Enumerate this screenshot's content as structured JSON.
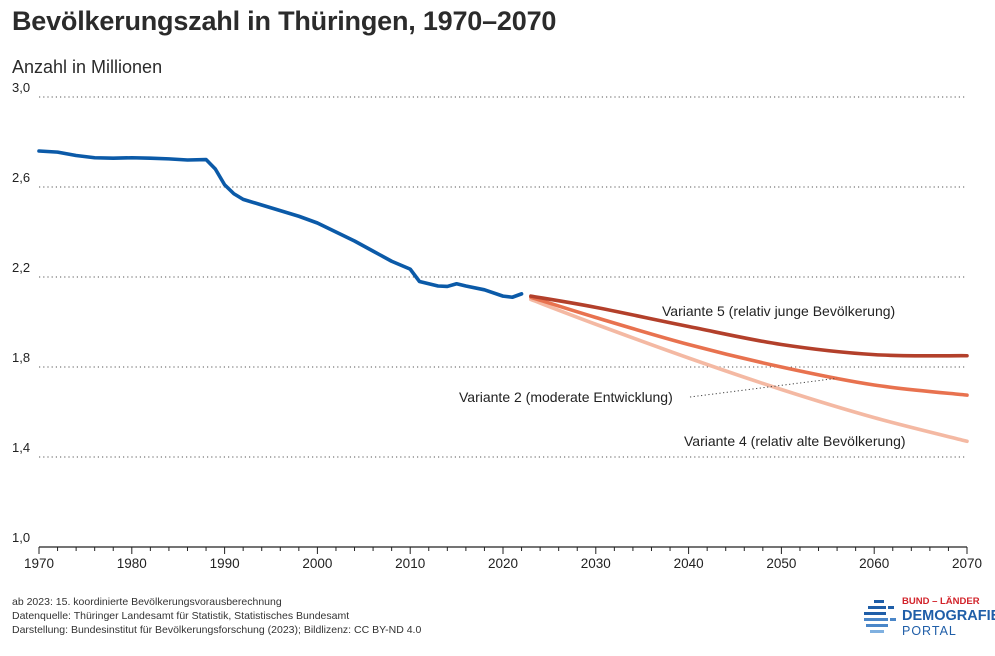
{
  "title": "Bevölkerungszahl in Thüringen, 1970–2070",
  "unit_label": "Anzahl in Millionen",
  "chart_data": {
    "type": "line",
    "title": "Bevölkerungszahl in Thüringen, 1970–2070",
    "ylabel": "Anzahl in Millionen",
    "xlim": [
      1970,
      2070
    ],
    "ylim": [
      1.0,
      3.0
    ],
    "x_ticks": [
      "1970",
      "1980",
      "1990",
      "2000",
      "2010",
      "2020",
      "2030",
      "2040",
      "2050",
      "2060",
      "2070"
    ],
    "y_ticks": [
      "1,0",
      "1,4",
      "1,8",
      "2,2",
      "2,6",
      "3,0"
    ],
    "grid": "horizontal dotted",
    "series": [
      {
        "color": "#0b5aa8",
        "x": [
          1970,
          1972,
          1974,
          1976,
          1978,
          1980,
          1982,
          1984,
          1986,
          1988,
          1989,
          1990,
          1991,
          1992,
          1994,
          1996,
          1998,
          2000,
          2002,
          2004,
          2006,
          2008,
          2010,
          2011,
          2012,
          2013,
          2014,
          2015,
          2016,
          2018,
          2020,
          2021,
          2022
        ],
        "values": [
          2.76,
          2.755,
          2.74,
          2.73,
          2.728,
          2.73,
          2.728,
          2.725,
          2.72,
          2.722,
          2.68,
          2.61,
          2.57,
          2.545,
          2.52,
          2.495,
          2.47,
          2.44,
          2.4,
          2.36,
          2.315,
          2.27,
          2.235,
          2.18,
          2.17,
          2.16,
          2.158,
          2.17,
          2.16,
          2.143,
          2.115,
          2.11,
          2.125
        ]
      },
      {
        "name": "Variante 5 (relativ junge Bevölkerung)",
        "color": "#b3402b",
        "x": [
          2023,
          2030,
          2040,
          2050,
          2060,
          2070
        ],
        "values": [
          2.115,
          2.065,
          1.98,
          1.9,
          1.855,
          1.85
        ]
      },
      {
        "name": "Variante 2 (moderate Entwicklung)",
        "color": "#e8724f",
        "x": [
          2023,
          2030,
          2040,
          2050,
          2060,
          2070
        ],
        "values": [
          2.11,
          2.02,
          1.9,
          1.8,
          1.72,
          1.675
        ]
      },
      {
        "name": "Variante 4 (relativ alte Bevölkerung)",
        "color": "#f4b9a3",
        "x": [
          2023,
          2030,
          2040,
          2050,
          2060,
          2070
        ],
        "values": [
          2.1,
          1.99,
          1.84,
          1.7,
          1.575,
          1.47
        ]
      }
    ]
  },
  "notes": [
    "ab 2023: 15. koordinierte Bevölkerungsvorausberechnung",
    "Datenquelle: Thüringer Landesamt für Statistik, Statistisches Bundesamt",
    "Darstellung: Bundesinstitut für Bevölkerungsforschung (2023); Bildlizenz: CC BY-ND 4.0"
  ],
  "logo": {
    "line1": "BUND – LÄNDER",
    "line2": "DEMOGRAFIE",
    "line3": "PORTAL",
    "color_primary": "#1f5ea8",
    "color_accent": "#d2232a"
  }
}
